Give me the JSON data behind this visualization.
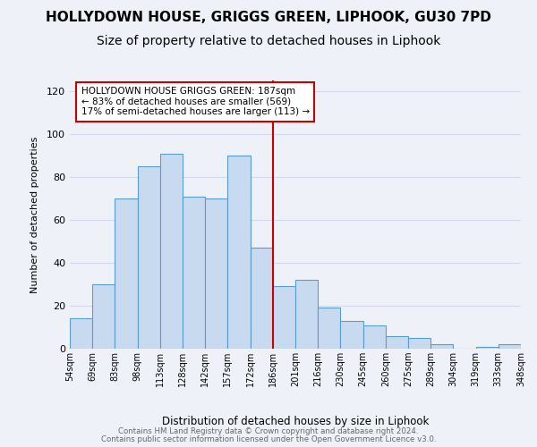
{
  "title": "HOLLYDOWN HOUSE, GRIGGS GREEN, LIPHOOK, GU30 7PD",
  "subtitle": "Size of property relative to detached houses in Liphook",
  "xlabel": "Distribution of detached houses by size in Liphook",
  "ylabel": "Number of detached properties",
  "footnote1": "Contains HM Land Registry data © Crown copyright and database right 2024.",
  "footnote2": "Contains public sector information licensed under the Open Government Licence v3.0.",
  "bar_labels": [
    "54sqm",
    "69sqm",
    "83sqm",
    "98sqm",
    "113sqm",
    "128sqm",
    "142sqm",
    "157sqm",
    "172sqm",
    "186sqm",
    "201sqm",
    "216sqm",
    "230sqm",
    "245sqm",
    "260sqm",
    "275sqm",
    "289sqm",
    "304sqm",
    "319sqm",
    "333sqm",
    "348sqm"
  ],
  "bar_heights": [
    14,
    30,
    70,
    85,
    91,
    71,
    70,
    90,
    47,
    29,
    32,
    19,
    13,
    11,
    6,
    5,
    2,
    0,
    1,
    2
  ],
  "bar_color": "#c8daf0",
  "bar_edge_color": "#5b9bd5",
  "vline_x_idx": 9,
  "vline_color": "#cc0000",
  "annotation_line1": "HOLLYDOWN HOUSE GRIGGS GREEN: 187sqm",
  "annotation_line2": "← 83% of detached houses are smaller (569)",
  "annotation_line3": "17% of semi-detached houses are larger (113) →",
  "annotation_box_edge": "#cc0000",
  "ylim": [
    0,
    125
  ],
  "yticks": [
    0,
    20,
    40,
    60,
    80,
    100,
    120
  ],
  "grid_color": "#d0d8e8",
  "bg_color": "#eef2f8",
  "title_fontsize": 11,
  "subtitle_fontsize": 10
}
